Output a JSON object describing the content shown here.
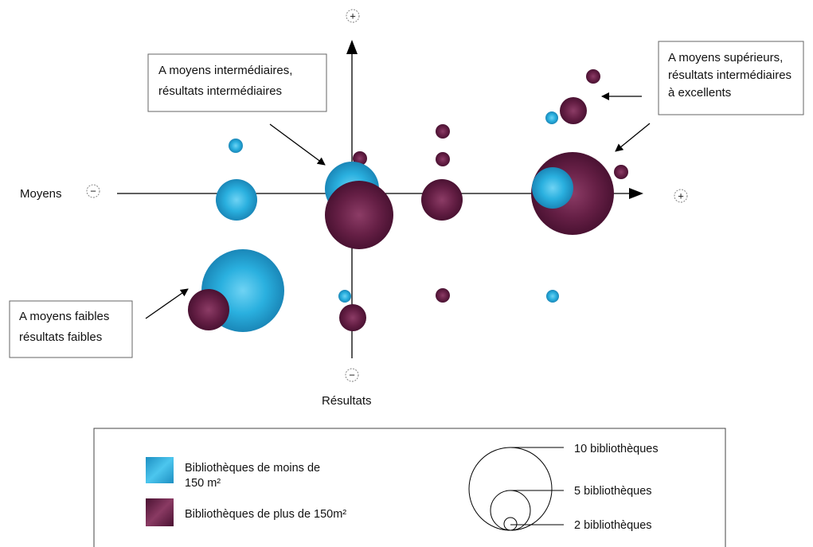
{
  "axes": {
    "x_label": "Moyens",
    "y_label": "Résultats",
    "plus_symbol": "+",
    "minus_symbol": "−"
  },
  "callouts": {
    "top_left": [
      "A moyens intermédiaires,",
      "résultats intermédiaires"
    ],
    "top_right": [
      "A moyens supérieurs,",
      "résultats intermédiaires",
      "à excellents"
    ],
    "bottom_left": [
      "A moyens faibles",
      "résultats faibles"
    ]
  },
  "legend": {
    "small_label_line1": "Bibliothèques de moins de",
    "small_label_line2": "150 m²",
    "large_label": "Bibliothèques de plus de 150m²",
    "size_10": "10 bibliothèques",
    "size_5": "5 bibliothèques",
    "size_2": "2 bibliothèques"
  },
  "colors": {
    "small": "#2aa7d6",
    "large": "#5e1a40",
    "axis": "#000000"
  }
}
